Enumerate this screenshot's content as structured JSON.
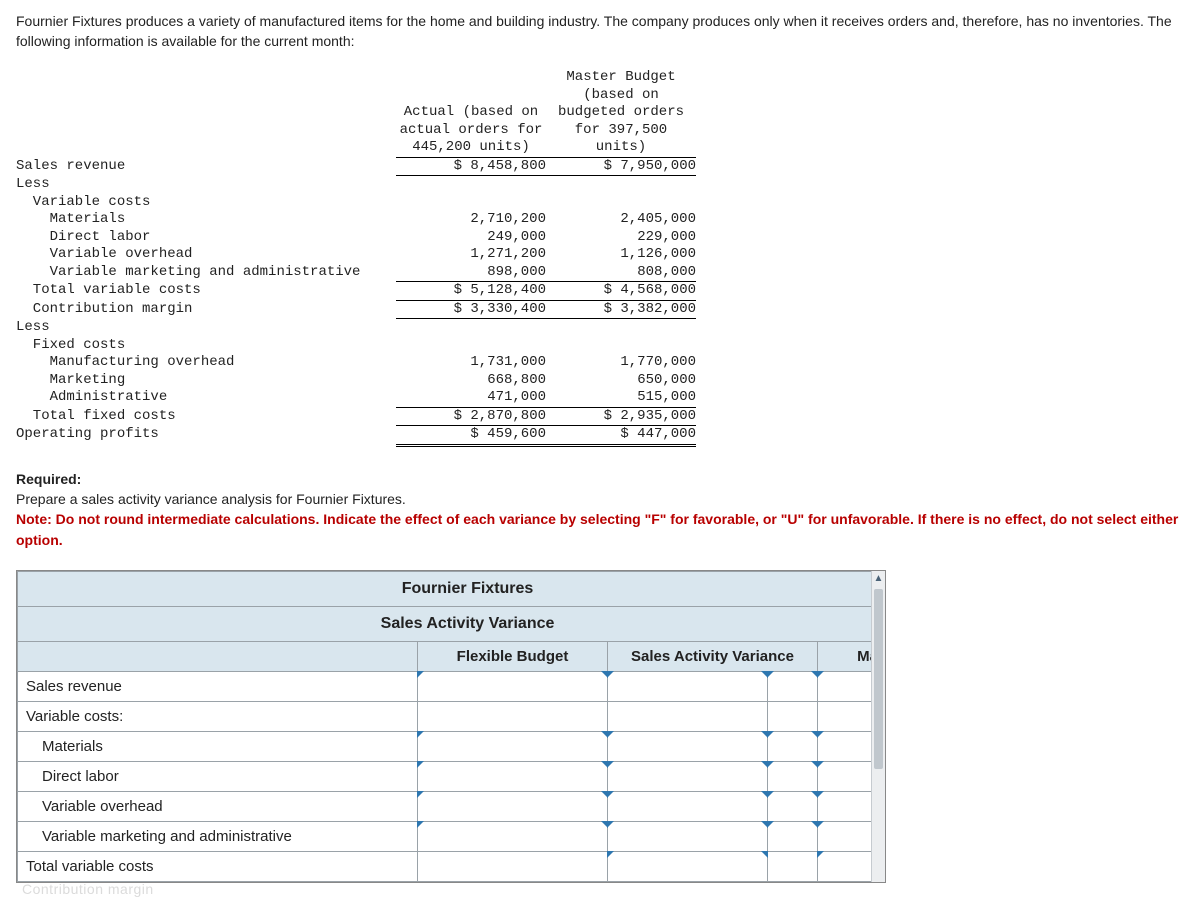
{
  "intro": "Fournier Fixtures produces a variety of manufactured items for the home and building industry. The company produces only when it receives orders and, therefore, has no inventories. The following information is available for the current month:",
  "table": {
    "header": {
      "actual": "Actual (based on\nactual orders for\n445,200 units)",
      "budget": "Master Budget\n(based on\nbudgeted orders\nfor 397,500\nunits)"
    },
    "rows": [
      {
        "label": "Sales revenue",
        "indent": 0,
        "actual": "$ 8,458,800",
        "budget": "$ 7,950,000",
        "bt_a": false,
        "bb_a": true,
        "bt_b": false,
        "bb_b": true
      },
      {
        "label": "Less",
        "indent": 0
      },
      {
        "label": "Variable costs",
        "indent": 1
      },
      {
        "label": "Materials",
        "indent": 2,
        "actual": "2,710,200",
        "budget": "2,405,000"
      },
      {
        "label": "Direct labor",
        "indent": 2,
        "actual": "249,000",
        "budget": "229,000"
      },
      {
        "label": "Variable overhead",
        "indent": 2,
        "actual": "1,271,200",
        "budget": "1,126,000"
      },
      {
        "label": "Variable marketing and administrative",
        "indent": 2,
        "actual": "898,000",
        "budget": "808,000",
        "bb_a": true,
        "bb_b": true
      },
      {
        "label": "Total variable costs",
        "indent": 1,
        "actual": "$ 5,128,400",
        "budget": "$ 4,568,000",
        "bb_a": true,
        "bb_b": true
      },
      {
        "label": "Contribution margin",
        "indent": 1,
        "actual": "$ 3,330,400",
        "budget": "$ 3,382,000",
        "bb_a": true,
        "bb_b": true
      },
      {
        "label": "Less",
        "indent": 0
      },
      {
        "label": "Fixed costs",
        "indent": 1
      },
      {
        "label": "Manufacturing overhead",
        "indent": 2,
        "actual": "1,731,000",
        "budget": "1,770,000"
      },
      {
        "label": "Marketing",
        "indent": 2,
        "actual": "668,800",
        "budget": "650,000"
      },
      {
        "label": "Administrative",
        "indent": 2,
        "actual": "471,000",
        "budget": "515,000",
        "bb_a": true,
        "bb_b": true
      },
      {
        "label": "Total fixed costs",
        "indent": 1,
        "actual": "$ 2,870,800",
        "budget": "$ 2,935,000",
        "bb_a": true,
        "bb_b": true
      },
      {
        "label": "Operating profits",
        "indent": 0,
        "actual": "$ 459,600",
        "budget": "$ 447,000",
        "dbl_a": true,
        "dbl_b": true
      }
    ]
  },
  "required": {
    "heading": "Required:",
    "line1": "Prepare a sales activity variance analysis for Fournier Fixtures.",
    "note": "Note: Do not round intermediate calculations. Indicate the effect of each variance by selecting \"F\" for favorable, or \"U\" for unfavorable. If there is no effect, do not select either option."
  },
  "answer": {
    "title1": "Fournier Fixtures",
    "title2": "Sales Activity Variance",
    "cols": {
      "flex": "Flexible Budget",
      "sav": "Sales Activity Variance",
      "ma": "Ma"
    },
    "rows": [
      {
        "label": "Sales revenue",
        "indent": 0,
        "inputs": true
      },
      {
        "label": "Variable costs:",
        "indent": 0,
        "inputs": false
      },
      {
        "label": "Materials",
        "indent": 1,
        "inputs": true
      },
      {
        "label": "Direct labor",
        "indent": 1,
        "inputs": true
      },
      {
        "label": "Variable overhead",
        "indent": 1,
        "inputs": true
      },
      {
        "label": "Variable marketing and administrative",
        "indent": 1,
        "inputs": true
      },
      {
        "label": "Total variable costs",
        "indent": 0,
        "inputs": false,
        "sumcells": true
      }
    ],
    "cutoff": "Contribution margin"
  },
  "colors": {
    "header_bg": "#d9e6ee",
    "border": "#9aa2a8",
    "tick": "#2e77b0",
    "note": "#b80000"
  }
}
